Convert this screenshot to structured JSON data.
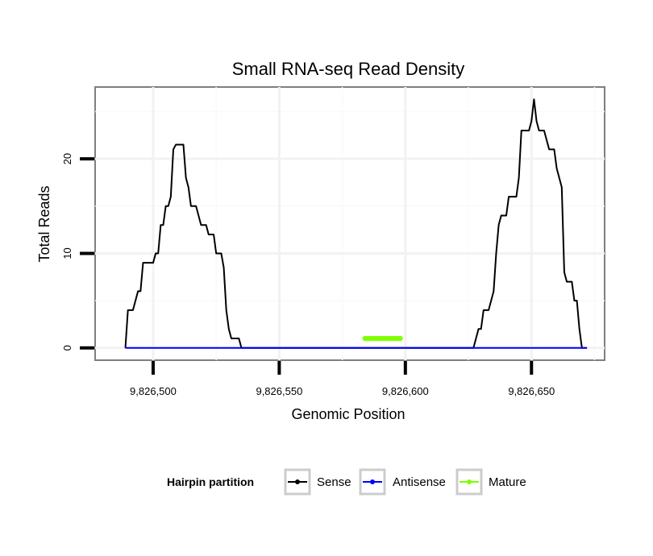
{
  "chart_data": {
    "type": "line",
    "title": "Small RNA-seq Read Density",
    "xlabel": "Genomic Position",
    "ylabel": "Total Reads",
    "xlim": [
      9826477,
      9826679
    ],
    "ylim": [
      -1.3,
      27.6
    ],
    "x_ticks": [
      9826500,
      9826550,
      9826600,
      9826650
    ],
    "x_tick_labels": [
      "9,826,500",
      "9,826,550",
      "9,826,600",
      "9,826,650"
    ],
    "y_ticks": [
      0,
      10,
      20
    ],
    "y_tick_labels": [
      "0",
      "10",
      "20"
    ],
    "legend": {
      "title": "Hairpin partition",
      "position": "bottom",
      "entries": [
        {
          "label": "Sense",
          "color": "#000000"
        },
        {
          "label": "Antisense",
          "color": "#0000ff"
        },
        {
          "label": "Mature",
          "color": "#7fff00"
        }
      ]
    },
    "series": [
      {
        "name": "Sense",
        "color": "#000000",
        "points": [
          [
            9826489,
            0
          ],
          [
            9826490,
            4
          ],
          [
            9826492,
            4
          ],
          [
            9826494,
            6
          ],
          [
            9826495,
            6
          ],
          [
            9826496,
            9
          ],
          [
            9826500,
            9
          ],
          [
            9826501,
            10
          ],
          [
            9826502,
            10
          ],
          [
            9826503,
            13
          ],
          [
            9826504,
            13
          ],
          [
            9826505,
            15
          ],
          [
            9826506,
            15
          ],
          [
            9826507,
            16
          ],
          [
            9826508,
            21
          ],
          [
            9826509,
            21.5
          ],
          [
            9826512,
            21.5
          ],
          [
            9826513,
            18
          ],
          [
            9826514,
            17
          ],
          [
            9826515,
            15
          ],
          [
            9826517,
            15
          ],
          [
            9826519,
            13
          ],
          [
            9826521,
            13
          ],
          [
            9826522,
            12
          ],
          [
            9826524,
            12
          ],
          [
            9826525,
            10
          ],
          [
            9826527,
            10
          ],
          [
            9826528,
            8.5
          ],
          [
            9826529,
            4
          ],
          [
            9826530,
            2
          ],
          [
            9826531,
            1
          ],
          [
            9826534,
            1
          ],
          [
            9826535,
            0
          ],
          [
            9826627,
            0
          ],
          [
            9826629,
            2
          ],
          [
            9826630,
            2
          ],
          [
            9826631,
            4
          ],
          [
            9826633,
            4
          ],
          [
            9826635,
            6
          ],
          [
            9826636,
            10
          ],
          [
            9826637,
            13
          ],
          [
            9826638,
            14
          ],
          [
            9826640,
            14
          ],
          [
            9826641,
            16
          ],
          [
            9826644,
            16
          ],
          [
            9826645,
            18
          ],
          [
            9826646,
            23
          ],
          [
            9826649,
            23
          ],
          [
            9826650,
            24
          ],
          [
            9826651,
            26.3
          ],
          [
            9826652,
            24
          ],
          [
            9826653,
            23
          ],
          [
            9826655,
            23
          ],
          [
            9826656,
            22
          ],
          [
            9826657,
            21
          ],
          [
            9826659,
            21
          ],
          [
            9826660,
            19
          ],
          [
            9826662,
            17
          ],
          [
            9826663,
            8
          ],
          [
            9826664,
            7
          ],
          [
            9826666,
            7
          ],
          [
            9826667,
            5
          ],
          [
            9826668,
            5
          ],
          [
            9826669,
            2
          ],
          [
            9826670,
            0
          ],
          [
            9826672,
            0
          ]
        ]
      },
      {
        "name": "Antisense",
        "color": "#0000ff",
        "points": [
          [
            9826489,
            0
          ],
          [
            9826672,
            0
          ]
        ]
      },
      {
        "name": "Mature",
        "color": "#7fff00",
        "points": [
          [
            9826584,
            1
          ],
          [
            9826585,
            1
          ],
          [
            9826586,
            1
          ],
          [
            9826587,
            1
          ],
          [
            9826588,
            1
          ],
          [
            9826589,
            1
          ],
          [
            9826590,
            1
          ],
          [
            9826591,
            1
          ],
          [
            9826592,
            1
          ],
          [
            9826593,
            1
          ],
          [
            9826594,
            1
          ],
          [
            9826595,
            1
          ],
          [
            9826596,
            1
          ],
          [
            9826597,
            1
          ],
          [
            9826598,
            1
          ]
        ]
      }
    ]
  }
}
